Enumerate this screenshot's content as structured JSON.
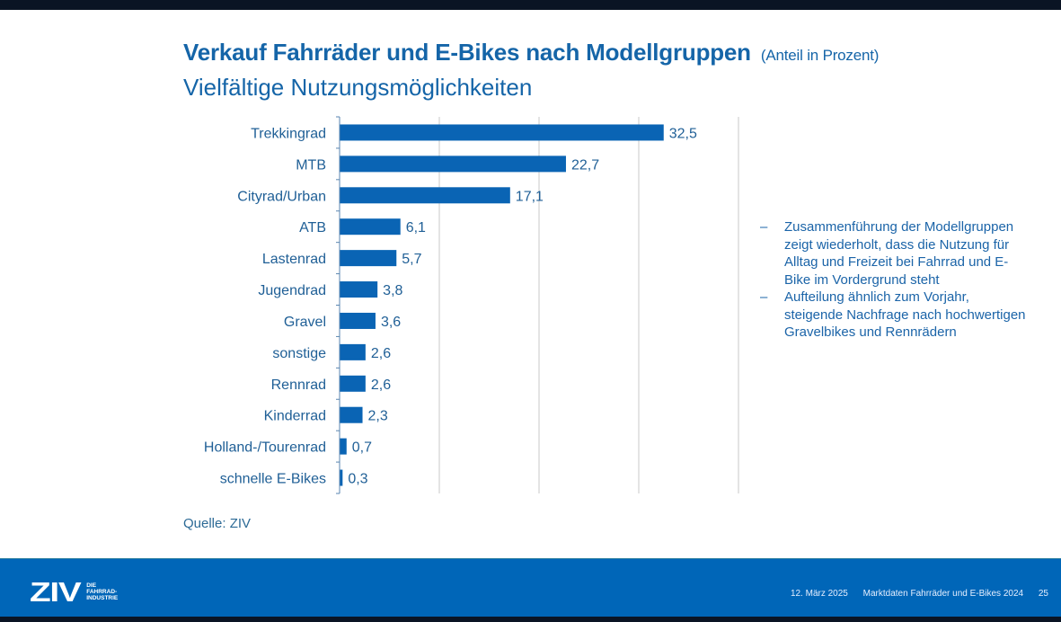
{
  "slide": {
    "title": "Verkauf Fahrräder und E-Bikes nach Modellgruppen",
    "title_unit": "(Anteil in Prozent)",
    "subtitle": "Vielfältige Nutzungsmöglichkeiten",
    "bullets": [
      "Zusammenführung der Modellgruppen zeigt wiederholt, dass die Nutzung für Alltag und Freizeit bei Fahrrad und E-Bike im Vordergrund steht",
      "Aufteilung ähnlich zum Vorjahr, steigende Nachfrage nach hochwertigen Gravelbikes und Rennrädern"
    ],
    "bullet_marker": "–",
    "source": "Quelle: ZIV"
  },
  "footer": {
    "logo_main": "ZIV",
    "logo_sub": [
      "DIE",
      "FAHRRAD-",
      "INDUSTRIE"
    ],
    "date": "12. März 2025",
    "presentation": "Marktdaten Fahrräder und E-Bikes 2024",
    "page": "25"
  },
  "colors": {
    "accent": "#0066b8",
    "bar": "#0a64b4",
    "text": "#1b64a8",
    "grid": "#c8c8c8"
  },
  "chart_data": {
    "type": "bar",
    "orientation": "horizontal",
    "title": "Verkauf Fahrräder und E-Bikes nach Modellgruppen (Anteil in Prozent)",
    "xlabel": "",
    "ylabel": "",
    "categories": [
      "Trekkingrad",
      "MTB",
      "Cityrad/Urban",
      "ATB",
      "Lastenrad",
      "Jugendrad",
      "Gravel",
      "sonstige",
      "Rennrad",
      "Kinderrad",
      "Holland-/Tourenrad",
      "schnelle E-Bikes"
    ],
    "values": [
      32.5,
      22.7,
      17.1,
      6.1,
      5.7,
      3.8,
      3.6,
      2.6,
      2.6,
      2.3,
      0.7,
      0.3
    ],
    "value_labels": [
      "32,5",
      "22,7",
      "17,1",
      "6,1",
      "5,7",
      "3,8",
      "3,6",
      "2,6",
      "2,6",
      "2,3",
      "0,7",
      "0,3"
    ],
    "xlim": [
      0,
      40
    ],
    "grid_step": 10,
    "grid": true,
    "legend": "none"
  }
}
